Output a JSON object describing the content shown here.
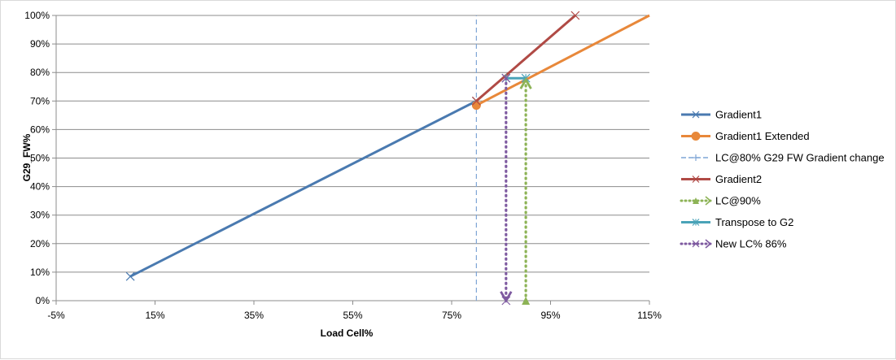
{
  "chart_data": {
    "type": "scatter",
    "title": "",
    "xlabel": "Load Cell%",
    "ylabel": "G29_FW%",
    "xlim": [
      -5,
      115
    ],
    "ylim": [
      0,
      100
    ],
    "x_ticks": [
      -5,
      15,
      35,
      55,
      75,
      95,
      115
    ],
    "x_tick_labels": [
      "-5%",
      "15%",
      "35%",
      "55%",
      "75%",
      "95%",
      "115%"
    ],
    "y_ticks": [
      0,
      10,
      20,
      30,
      40,
      50,
      60,
      70,
      80,
      90,
      100
    ],
    "y_tick_labels": [
      "0%",
      "10%",
      "20%",
      "30%",
      "40%",
      "50%",
      "60%",
      "70%",
      "80%",
      "90%",
      "100%"
    ],
    "grid": "horizontal",
    "legend_position": "right",
    "series": [
      {
        "name": "Gradient1",
        "color": "#4a7ab0",
        "dash": "solid",
        "marker": "x",
        "x": [
          10,
          80
        ],
        "y": [
          8.5,
          70
        ]
      },
      {
        "name": "Gradient1 Extended",
        "color": "#e8883a",
        "dash": "solid",
        "marker": "circle",
        "x": [
          80,
          115
        ],
        "y": [
          68.5,
          100
        ]
      },
      {
        "name": "LC@80% G29 FW Gradient change",
        "color": "#7ea5d6",
        "dash": "dashed",
        "marker": "plus",
        "x": [
          80,
          80
        ],
        "y": [
          0,
          100
        ]
      },
      {
        "name": "Gradient2",
        "color": "#b04a45",
        "dash": "solid",
        "marker": "x",
        "x": [
          80,
          100
        ],
        "y": [
          70,
          100
        ]
      },
      {
        "name": "LC@90%",
        "color": "#8db356",
        "dash": "dotted",
        "marker": "triangle",
        "x": [
          90,
          90
        ],
        "y": [
          0,
          77.5
        ]
      },
      {
        "name": "Transpose to G2",
        "color": "#4aa3b8",
        "dash": "solid",
        "marker": "asterisk",
        "x": [
          86,
          90
        ],
        "y": [
          78,
          78
        ]
      },
      {
        "name": "New LC% 86%",
        "color": "#7e5aa0",
        "dash": "dotted",
        "marker": "x",
        "x": [
          86,
          86
        ],
        "y": [
          78,
          0
        ]
      }
    ]
  }
}
